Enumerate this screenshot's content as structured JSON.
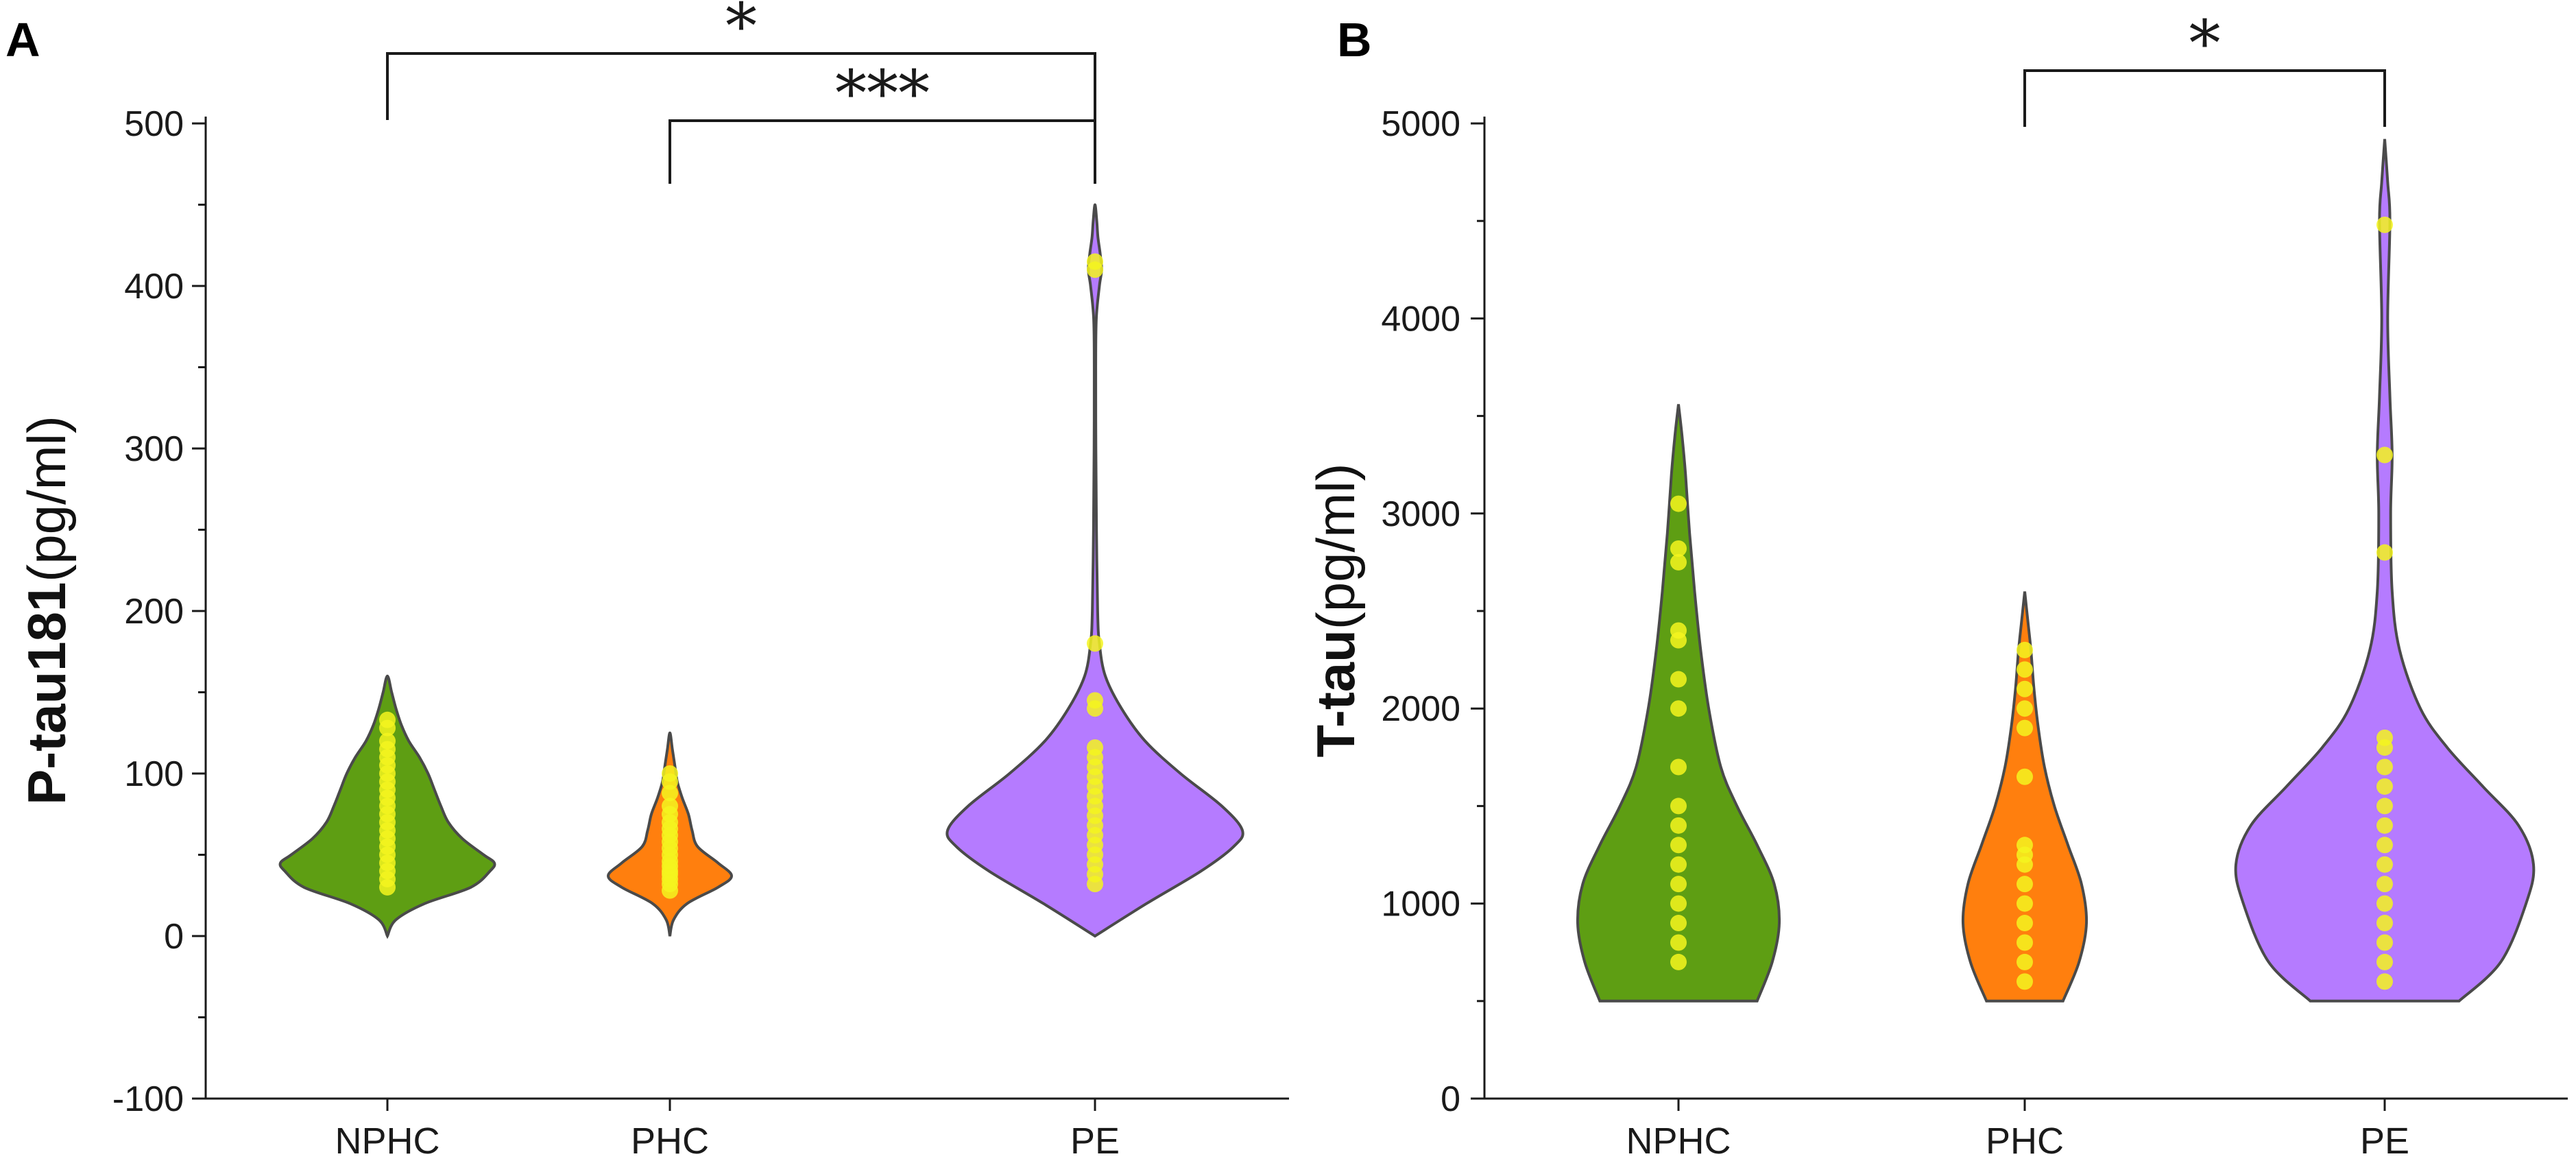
{
  "chart_data": [
    {
      "panel": "A",
      "type": "violin",
      "ylabel_main": "P-tau181",
      "ylabel_unit": "(pg/ml)",
      "xlabel": "",
      "ylim": [
        -100,
        500
      ],
      "yticks": [
        -100,
        0,
        100,
        200,
        300,
        400,
        500
      ],
      "yticks_labels": [
        "-100",
        "0",
        "100",
        "200",
        "300",
        "400",
        "500"
      ],
      "categories": [
        "NPHC",
        "PHC",
        "PE"
      ],
      "series": [
        {
          "name": "NPHC",
          "color": "#5e9e13",
          "profile": [
            [
              0,
              0
            ],
            [
              10,
              0.08
            ],
            [
              20,
              0.35
            ],
            [
              30,
              0.78
            ],
            [
              40,
              0.96
            ],
            [
              45,
              1.0
            ],
            [
              50,
              0.9
            ],
            [
              60,
              0.7
            ],
            [
              70,
              0.57
            ],
            [
              80,
              0.5
            ],
            [
              90,
              0.44
            ],
            [
              100,
              0.38
            ],
            [
              110,
              0.3
            ],
            [
              120,
              0.2
            ],
            [
              130,
              0.13
            ],
            [
              140,
              0.08
            ],
            [
              150,
              0.04
            ],
            [
              160,
              0
            ]
          ],
          "points": [
            30,
            35,
            40,
            45,
            50,
            55,
            60,
            65,
            70,
            75,
            80,
            85,
            90,
            95,
            100,
            105,
            110,
            115,
            120,
            128,
            133
          ]
        },
        {
          "name": "PHC",
          "color": "#ff7f0e",
          "profile": [
            [
              0,
              0
            ],
            [
              10,
              0.06
            ],
            [
              20,
              0.28
            ],
            [
              30,
              0.78
            ],
            [
              37,
              1.0
            ],
            [
              45,
              0.78
            ],
            [
              55,
              0.45
            ],
            [
              65,
              0.36
            ],
            [
              75,
              0.3
            ],
            [
              85,
              0.2
            ],
            [
              95,
              0.12
            ],
            [
              105,
              0.08
            ],
            [
              115,
              0.04
            ],
            [
              125,
              0
            ]
          ],
          "points": [
            28,
            32,
            35,
            38,
            40,
            43,
            46,
            50,
            54,
            58,
            62,
            66,
            70,
            75,
            80,
            88,
            95,
            100
          ]
        },
        {
          "name": "PE",
          "color": "#b57bff",
          "profile": [
            [
              0,
              0
            ],
            [
              20,
              0.35
            ],
            [
              40,
              0.72
            ],
            [
              55,
              0.94
            ],
            [
              65,
              1.0
            ],
            [
              80,
              0.86
            ],
            [
              100,
              0.58
            ],
            [
              120,
              0.34
            ],
            [
              140,
              0.18
            ],
            [
              160,
              0.07
            ],
            [
              180,
              0.03
            ],
            [
              200,
              0.018
            ],
            [
              250,
              0.01
            ],
            [
              300,
              0.006
            ],
            [
              350,
              0.005
            ],
            [
              380,
              0.009
            ],
            [
              400,
              0.03
            ],
            [
              410,
              0.045
            ],
            [
              420,
              0.035
            ],
            [
              430,
              0.02
            ],
            [
              440,
              0.012
            ],
            [
              450,
              0
            ]
          ],
          "points": [
            32,
            38,
            44,
            50,
            56,
            62,
            68,
            74,
            80,
            86,
            92,
            98,
            104,
            110,
            116,
            140,
            145,
            180,
            410,
            415
          ]
        }
      ],
      "significance": [
        {
          "from": "NPHC",
          "to": "PE",
          "label": "*"
        },
        {
          "from": "PHC",
          "to": "PE",
          "label": "***"
        }
      ]
    },
    {
      "panel": "B",
      "type": "violin",
      "ylabel_main": "T-tau",
      "ylabel_unit": "(pg/ml)",
      "xlabel": "",
      "ylim": [
        0,
        5000
      ],
      "yticks": [
        0,
        1000,
        2000,
        3000,
        4000,
        5000
      ],
      "yticks_labels": [
        "0",
        "1000",
        "2000",
        "3000",
        "4000",
        "5000"
      ],
      "categories": [
        "NPHC",
        "PHC",
        "PE"
      ],
      "series": [
        {
          "name": "NPHC",
          "color": "#5e9e13",
          "profile": [
            [
              500,
              0.78
            ],
            [
              700,
              0.93
            ],
            [
              900,
              1.0
            ],
            [
              1100,
              0.95
            ],
            [
              1300,
              0.78
            ],
            [
              1500,
              0.58
            ],
            [
              1700,
              0.42
            ],
            [
              2000,
              0.3
            ],
            [
              2300,
              0.22
            ],
            [
              2600,
              0.16
            ],
            [
              2900,
              0.11
            ],
            [
              3200,
              0.07
            ],
            [
              3400,
              0.035
            ],
            [
              3560,
              0
            ]
          ],
          "points": [
            700,
            800,
            900,
            1000,
            1100,
            1200,
            1300,
            1400,
            1500,
            1700,
            2000,
            2150,
            2350,
            2400,
            2750,
            2820,
            3050
          ]
        },
        {
          "name": "PHC",
          "color": "#ff7f0e",
          "profile": [
            [
              500,
              0.62
            ],
            [
              700,
              0.88
            ],
            [
              900,
              1.0
            ],
            [
              1100,
              0.92
            ],
            [
              1300,
              0.7
            ],
            [
              1500,
              0.48
            ],
            [
              1700,
              0.32
            ],
            [
              1900,
              0.22
            ],
            [
              2100,
              0.15
            ],
            [
              2300,
              0.1
            ],
            [
              2450,
              0.05
            ],
            [
              2600,
              0
            ]
          ],
          "points": [
            600,
            700,
            800,
            900,
            1000,
            1100,
            1200,
            1250,
            1300,
            1650,
            1900,
            2000,
            2100,
            2200,
            2300
          ]
        },
        {
          "name": "PE",
          "color": "#b57bff",
          "profile": [
            [
              500,
              0.5
            ],
            [
              700,
              0.78
            ],
            [
              1000,
              0.95
            ],
            [
              1200,
              1.0
            ],
            [
              1400,
              0.9
            ],
            [
              1600,
              0.66
            ],
            [
              1800,
              0.42
            ],
            [
              2000,
              0.24
            ],
            [
              2300,
              0.1
            ],
            [
              2600,
              0.05
            ],
            [
              3000,
              0.04
            ],
            [
              3300,
              0.05
            ],
            [
              3600,
              0.035
            ],
            [
              4000,
              0.02
            ],
            [
              4500,
              0.035
            ],
            [
              4700,
              0.02
            ],
            [
              4920,
              0
            ]
          ],
          "points": [
            600,
            700,
            800,
            900,
            1000,
            1100,
            1200,
            1300,
            1400,
            1500,
            1600,
            1700,
            1800,
            1850,
            2800,
            3300,
            4480
          ]
        }
      ],
      "significance": [
        {
          "from": "PHC",
          "to": "PE",
          "label": "*"
        }
      ]
    }
  ]
}
